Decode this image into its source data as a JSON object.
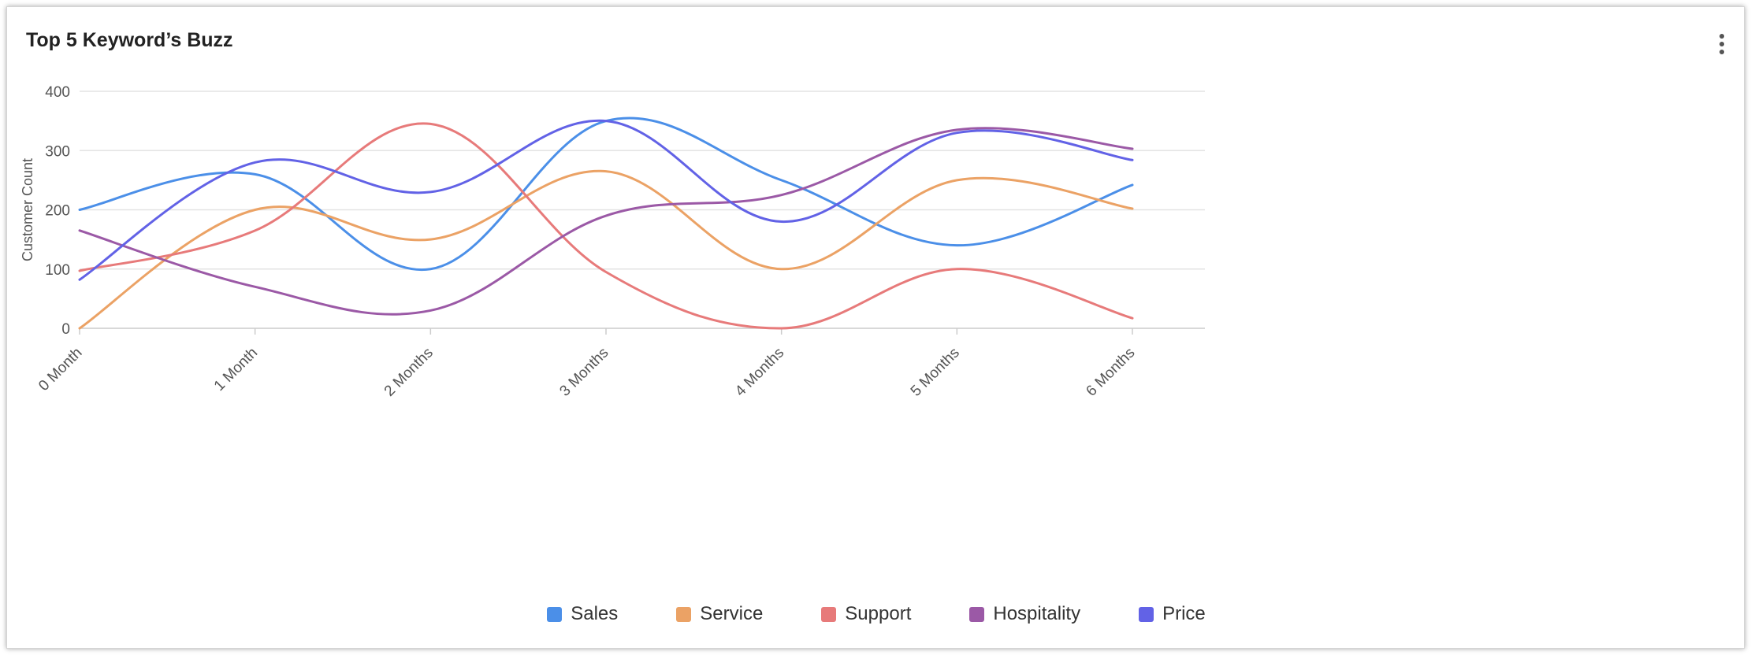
{
  "card": {
    "title": "Top 5 Keyword’s Buzz",
    "menu_icon": "more-vertical-icon"
  },
  "chart_data": {
    "type": "line",
    "smooth": true,
    "title": "Top 5 Keyword’s Buzz",
    "xlabel": "",
    "ylabel": "Customer Count",
    "categories": [
      "0 Month",
      "1 Month",
      "2 Months",
      "3 Months",
      "4 Months",
      "5 Months",
      "6 Months"
    ],
    "ylim": [
      0,
      400
    ],
    "yticks": [
      0,
      100,
      200,
      300,
      400
    ],
    "grid": true,
    "legend_position": "bottom",
    "series": [
      {
        "name": "Sales",
        "color": "#4b8fe8",
        "values": [
          200,
          260,
          100,
          350,
          250,
          140,
          242
        ]
      },
      {
        "name": "Service",
        "color": "#eba265",
        "values": [
          0,
          200,
          150,
          265,
          100,
          250,
          202
        ]
      },
      {
        "name": "Support",
        "color": "#e77a7a",
        "values": [
          97,
          165,
          345,
          95,
          0,
          100,
          17
        ]
      },
      {
        "name": "Hospitality",
        "color": "#9b59a6",
        "values": [
          165,
          70,
          30,
          190,
          225,
          335,
          303
        ]
      },
      {
        "name": "Price",
        "color": "#6262e6",
        "values": [
          82,
          280,
          230,
          350,
          180,
          330,
          284
        ]
      }
    ]
  }
}
